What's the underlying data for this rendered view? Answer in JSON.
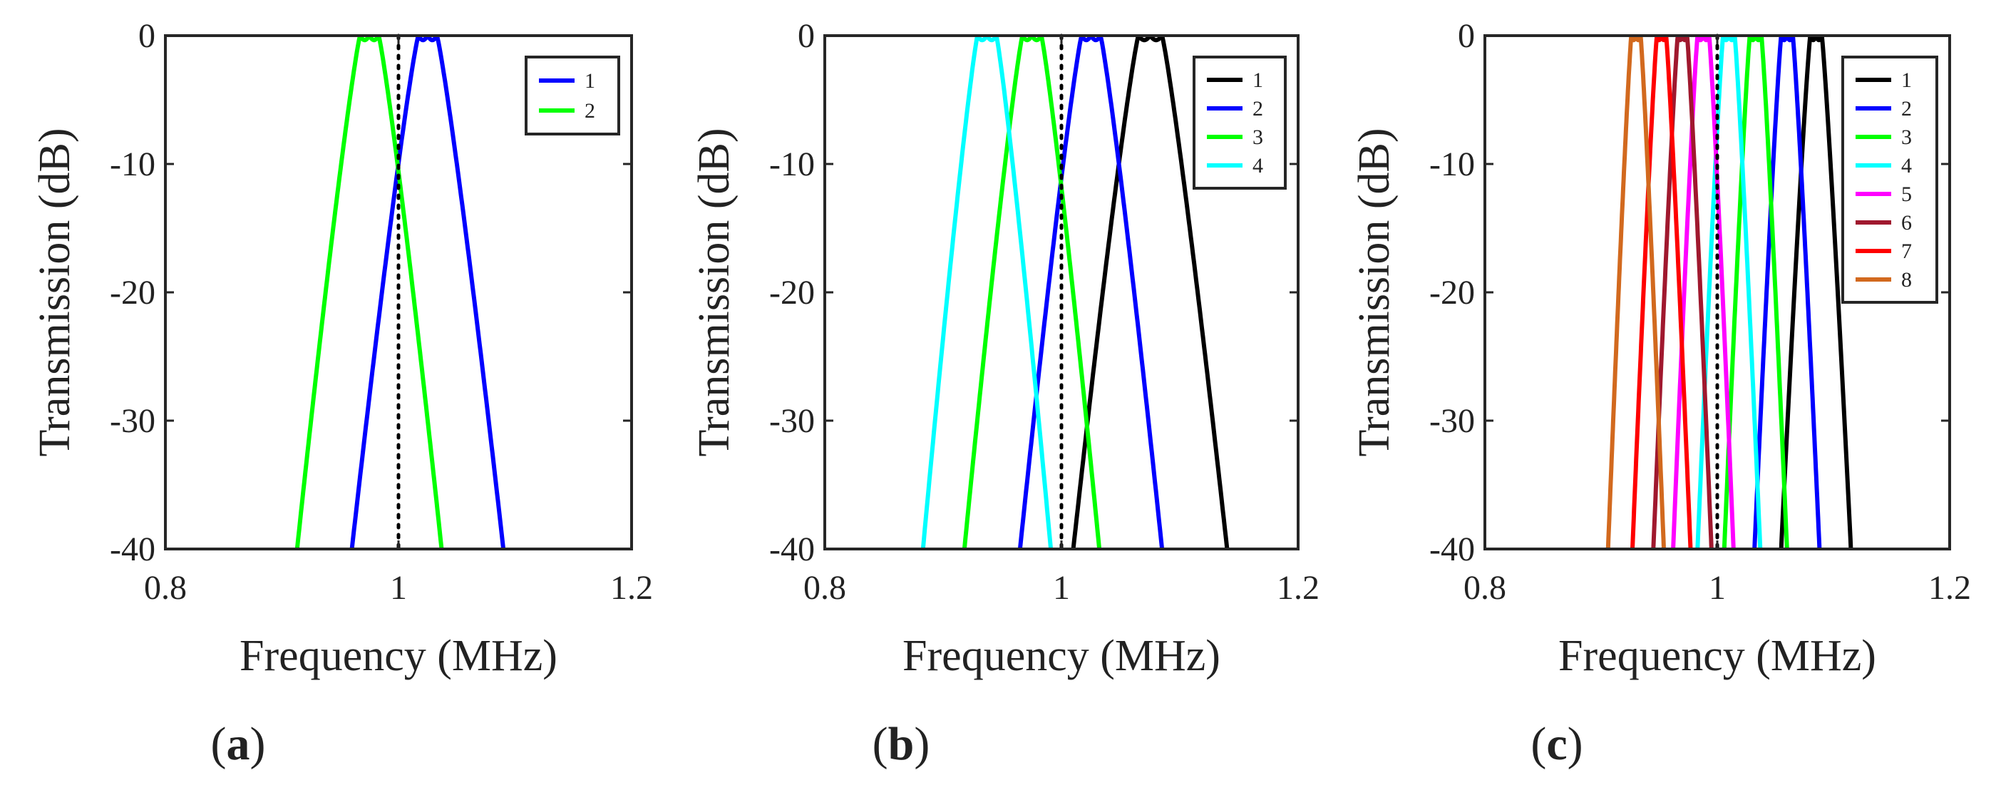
{
  "chart_data": [
    {
      "type": "line",
      "panel_label": "(a)",
      "xlabel": "Frequency (MHz)",
      "ylabel": "Transmission (dB)",
      "xlim": [
        0.8,
        1.2
      ],
      "ylim": [
        -40,
        0
      ],
      "xticks": [
        "0.8",
        "1",
        "1.2"
      ],
      "yticks": [
        "0",
        "-10",
        "-20",
        "-30",
        "-40"
      ],
      "legend_position": "top-right",
      "reference_line": {
        "x": 1.0,
        "style": "dotted",
        "color": "#000000"
      },
      "series": [
        {
          "name": "1",
          "color": "#0000ff",
          "center": 1.025,
          "flat_halfwidth": 0.008,
          "edge_halfwidth": 0.065
        },
        {
          "name": "2",
          "color": "#00ff00",
          "center": 0.975,
          "flat_halfwidth": 0.008,
          "edge_halfwidth": 0.062
        }
      ]
    },
    {
      "type": "line",
      "panel_label": "(b)",
      "xlabel": "Frequency (MHz)",
      "ylabel": "Transmission (dB)",
      "xlim": [
        0.8,
        1.2
      ],
      "ylim": [
        -40,
        0
      ],
      "xticks": [
        "0.8",
        "1",
        "1.2"
      ],
      "yticks": [
        "0",
        "-10",
        "-20",
        "-30",
        "-40"
      ],
      "legend_position": "top-right",
      "reference_line": {
        "x": 1.0,
        "style": "dotted",
        "color": "#000000"
      },
      "series": [
        {
          "name": "1",
          "color": "#000000",
          "center": 1.075,
          "flat_halfwidth": 0.01,
          "edge_halfwidth": 0.065
        },
        {
          "name": "2",
          "color": "#0000ff",
          "center": 1.025,
          "flat_halfwidth": 0.008,
          "edge_halfwidth": 0.06
        },
        {
          "name": "3",
          "color": "#00ff00",
          "center": 0.975,
          "flat_halfwidth": 0.008,
          "edge_halfwidth": 0.057
        },
        {
          "name": "4",
          "color": "#00ffff",
          "center": 0.937,
          "flat_halfwidth": 0.008,
          "edge_halfwidth": 0.054
        }
      ]
    },
    {
      "type": "line",
      "panel_label": "(c)",
      "xlabel": "Frequency (MHz)",
      "ylabel": "Transmission (dB)",
      "xlim": [
        0.8,
        1.2
      ],
      "ylim": [
        -40,
        0
      ],
      "xticks": [
        "0.8",
        "1",
        "1.2"
      ],
      "yticks": [
        "0",
        "-10",
        "-20",
        "-30",
        "-40"
      ],
      "legend_position": "top-right",
      "reference_line": {
        "x": 1.0,
        "style": "dotted",
        "color": "#000000"
      },
      "series": [
        {
          "name": "1",
          "color": "#000000",
          "center": 1.085,
          "flat_halfwidth": 0.005,
          "edge_halfwidth": 0.03
        },
        {
          "name": "2",
          "color": "#0000ff",
          "center": 1.06,
          "flat_halfwidth": 0.005,
          "edge_halfwidth": 0.028
        },
        {
          "name": "3",
          "color": "#00ff00",
          "center": 1.033,
          "flat_halfwidth": 0.005,
          "edge_halfwidth": 0.027
        },
        {
          "name": "4",
          "color": "#00ffff",
          "center": 1.01,
          "flat_halfwidth": 0.005,
          "edge_halfwidth": 0.027
        },
        {
          "name": "5",
          "color": "#ff00ff",
          "center": 0.988,
          "flat_halfwidth": 0.005,
          "edge_halfwidth": 0.026
        },
        {
          "name": "6",
          "color": "#a0182e",
          "center": 0.97,
          "flat_halfwidth": 0.004,
          "edge_halfwidth": 0.025
        },
        {
          "name": "7",
          "color": "#ff0000",
          "center": 0.952,
          "flat_halfwidth": 0.004,
          "edge_halfwidth": 0.025
        },
        {
          "name": "8",
          "color": "#d2691e",
          "center": 0.93,
          "flat_halfwidth": 0.004,
          "edge_halfwidth": 0.024
        }
      ]
    }
  ]
}
